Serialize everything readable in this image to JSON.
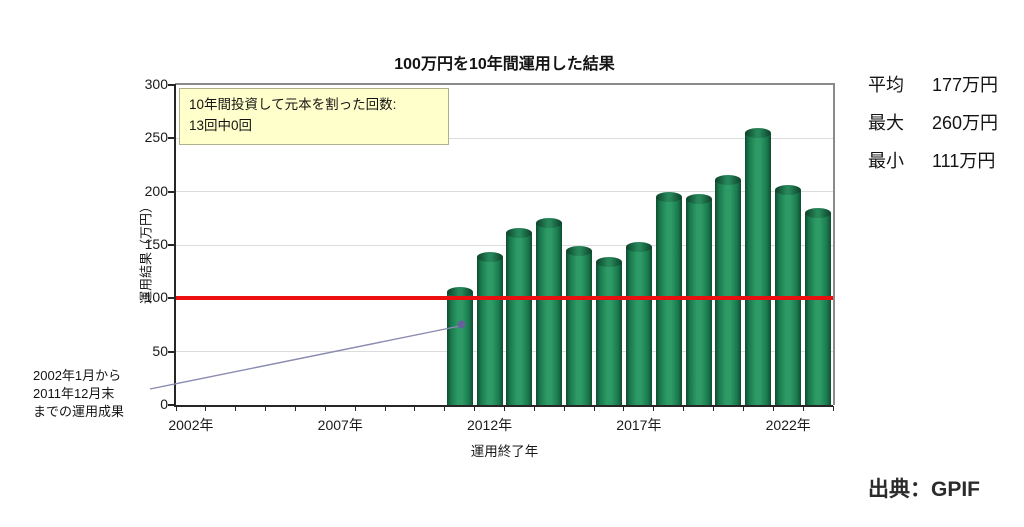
{
  "annotation": {
    "line1": "10年間投資して元本を割った回数:",
    "line2": "13回中0回"
  },
  "note": {
    "lines": [
      "2002年1月から",
      "2011年12月末",
      "までの運用成果"
    ]
  },
  "stats": [
    {
      "label": "平均",
      "value": "177万円"
    },
    {
      "label": "最大",
      "value": "260万円"
    },
    {
      "label": "最小",
      "value": "111万円"
    }
  ],
  "source": "出典：GPIF",
  "chart_data": {
    "type": "bar",
    "title": "100万円を10年間運用した結果",
    "xlabel": "運用終了年",
    "ylabel": "運用結果（万円）",
    "categories": [
      2011,
      2012,
      2013,
      2014,
      2015,
      2016,
      2017,
      2018,
      2019,
      2020,
      2021,
      2022,
      2023
    ],
    "values": [
      111,
      143,
      166,
      175,
      149,
      139,
      153,
      200,
      198,
      216,
      260,
      206,
      185
    ],
    "x_axis_years": [
      2002,
      2023
    ],
    "x_tick_labels": [
      {
        "year": 2002,
        "label": "2002年"
      },
      {
        "year": 2007,
        "label": "2007年"
      },
      {
        "year": 2012,
        "label": "2012年"
      },
      {
        "year": 2017,
        "label": "2017年"
      },
      {
        "year": 2022,
        "label": "2022年"
      }
    ],
    "y_ticks": [
      0,
      50,
      100,
      150,
      200,
      250,
      300
    ],
    "ylim": [
      0,
      300
    ],
    "grid": true,
    "legend": "none",
    "reference_line": {
      "value": 100,
      "color": "#ec0f0f"
    },
    "bar_colors": {
      "dark": "#0f4d31",
      "mid": "#197a4e",
      "light": "#2e9b66",
      "cap_dark": "#0c4229",
      "cap_light": "#27875a"
    }
  }
}
